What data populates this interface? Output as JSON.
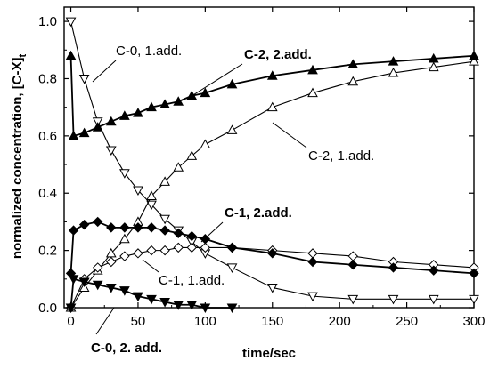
{
  "chart_data": {
    "type": "line",
    "xlabel": "time/sec",
    "ylabel": "normalized concentration, [C-X]",
    "ylabel_sub": "t",
    "xlim": [
      -5,
      300
    ],
    "ylim": [
      0,
      1.05
    ],
    "xticks": [
      0,
      50,
      100,
      150,
      200,
      250,
      300
    ],
    "xtick_labels": [
      "0",
      "50",
      "100",
      "150",
      "200",
      "250",
      "300"
    ],
    "yticks": [
      0,
      0.2,
      0.4,
      0.6,
      0.8,
      1.0
    ],
    "ytick_labels": [
      "0.0",
      "0.2",
      "0.4",
      "0.6",
      "0.8",
      "1.0"
    ],
    "grid": false,
    "series": [
      {
        "label": "C-0, 1.add.",
        "marker": "triangle-down",
        "filled": false,
        "x": [
          0,
          10,
          20,
          30,
          40,
          50,
          60,
          70,
          80,
          90,
          100,
          120,
          150,
          180,
          210,
          240,
          270,
          300
        ],
        "y": [
          1.0,
          0.8,
          0.65,
          0.55,
          0.47,
          0.41,
          0.36,
          0.31,
          0.27,
          0.23,
          0.19,
          0.14,
          0.07,
          0.04,
          0.03,
          0.03,
          0.03,
          0.03
        ]
      },
      {
        "label": "C-2, 1.add.",
        "marker": "triangle-up",
        "filled": false,
        "x": [
          0,
          10,
          20,
          30,
          40,
          50,
          60,
          70,
          80,
          90,
          100,
          120,
          150,
          180,
          210,
          240,
          270,
          300
        ],
        "y": [
          0.0,
          0.07,
          0.13,
          0.19,
          0.24,
          0.3,
          0.39,
          0.44,
          0.49,
          0.53,
          0.57,
          0.62,
          0.7,
          0.75,
          0.79,
          0.82,
          0.84,
          0.86
        ]
      },
      {
        "label": "C-1, 1.add.",
        "marker": "diamond",
        "filled": false,
        "x": [
          0,
          10,
          20,
          30,
          40,
          50,
          60,
          70,
          80,
          90,
          100,
          120,
          150,
          180,
          210,
          240,
          270,
          300
        ],
        "y": [
          0.0,
          0.1,
          0.14,
          0.16,
          0.18,
          0.19,
          0.2,
          0.2,
          0.21,
          0.21,
          0.21,
          0.21,
          0.2,
          0.19,
          0.18,
          0.16,
          0.15,
          0.14
        ]
      },
      {
        "label": "C-2, 2.add.",
        "marker": "triangle-up",
        "filled": true,
        "x": [
          0,
          2,
          10,
          20,
          30,
          40,
          50,
          60,
          70,
          80,
          90,
          100,
          120,
          150,
          180,
          210,
          240,
          270,
          300
        ],
        "y": [
          0.88,
          0.6,
          0.61,
          0.63,
          0.65,
          0.67,
          0.68,
          0.7,
          0.71,
          0.72,
          0.74,
          0.75,
          0.78,
          0.81,
          0.83,
          0.85,
          0.86,
          0.87,
          0.88
        ]
      },
      {
        "label": "C-1, 2.add.",
        "marker": "diamond",
        "filled": true,
        "x": [
          0,
          2,
          10,
          20,
          30,
          40,
          50,
          60,
          70,
          80,
          90,
          100,
          120,
          150,
          180,
          210,
          240,
          270,
          300
        ],
        "y": [
          0.12,
          0.27,
          0.29,
          0.3,
          0.28,
          0.28,
          0.28,
          0.28,
          0.27,
          0.26,
          0.25,
          0.24,
          0.21,
          0.19,
          0.16,
          0.15,
          0.14,
          0.13,
          0.12
        ]
      },
      {
        "label": "C-0, 2. add.",
        "marker": "triangle-down",
        "filled": true,
        "x": [
          0,
          2,
          10,
          20,
          30,
          40,
          50,
          60,
          70,
          80,
          90,
          100,
          120
        ],
        "y": [
          0.0,
          0.1,
          0.09,
          0.08,
          0.07,
          0.06,
          0.04,
          0.03,
          0.02,
          0.01,
          0.01,
          0.0,
          0.0
        ]
      }
    ],
    "annotations": [
      {
        "id": "ann-c0-1add",
        "text": "C-0, 1.add.",
        "bold": false
      },
      {
        "id": "ann-c2-2add",
        "text": "C-2, 2.add.",
        "bold": true
      },
      {
        "id": "ann-c2-1add",
        "text": "C-2, 1.add.",
        "bold": false
      },
      {
        "id": "ann-c1-2add",
        "text": "C-1, 2.add.",
        "bold": true
      },
      {
        "id": "ann-c1-1add",
        "text": "C-1, 1.add.",
        "bold": false
      },
      {
        "id": "ann-c0-2add",
        "text": "C-0, 2. add.",
        "bold": true
      }
    ]
  }
}
